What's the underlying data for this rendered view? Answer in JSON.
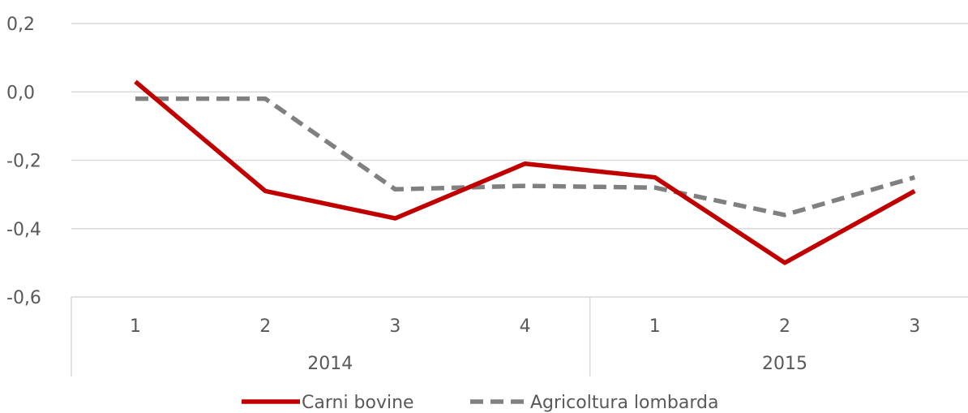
{
  "chart_data": {
    "type": "line",
    "title": "",
    "xlabel": "",
    "ylabel": "",
    "ylim": [
      -0.6,
      0.2
    ],
    "yticks": [
      "0,2",
      "0,0",
      "-0,2",
      "-0,4",
      "-0,6"
    ],
    "ytick_values": [
      0.2,
      0.0,
      -0.2,
      -0.4,
      -0.6
    ],
    "categories": [
      "1",
      "2",
      "3",
      "4",
      "1",
      "2",
      "3"
    ],
    "groups": [
      {
        "label": "2014",
        "count": 4
      },
      {
        "label": "2015",
        "count": 3
      }
    ],
    "grid": true,
    "legend_position": "bottom",
    "series": [
      {
        "name": "Carni bovine",
        "values": [
          0.03,
          -0.29,
          -0.37,
          -0.21,
          -0.25,
          -0.5,
          -0.29
        ],
        "color": "#c00000",
        "style": "solid"
      },
      {
        "name": "Agricoltura lombarda",
        "values": [
          -0.02,
          -0.02,
          -0.285,
          -0.275,
          -0.28,
          -0.36,
          -0.25
        ],
        "color": "#808080",
        "style": "dashed"
      }
    ]
  }
}
